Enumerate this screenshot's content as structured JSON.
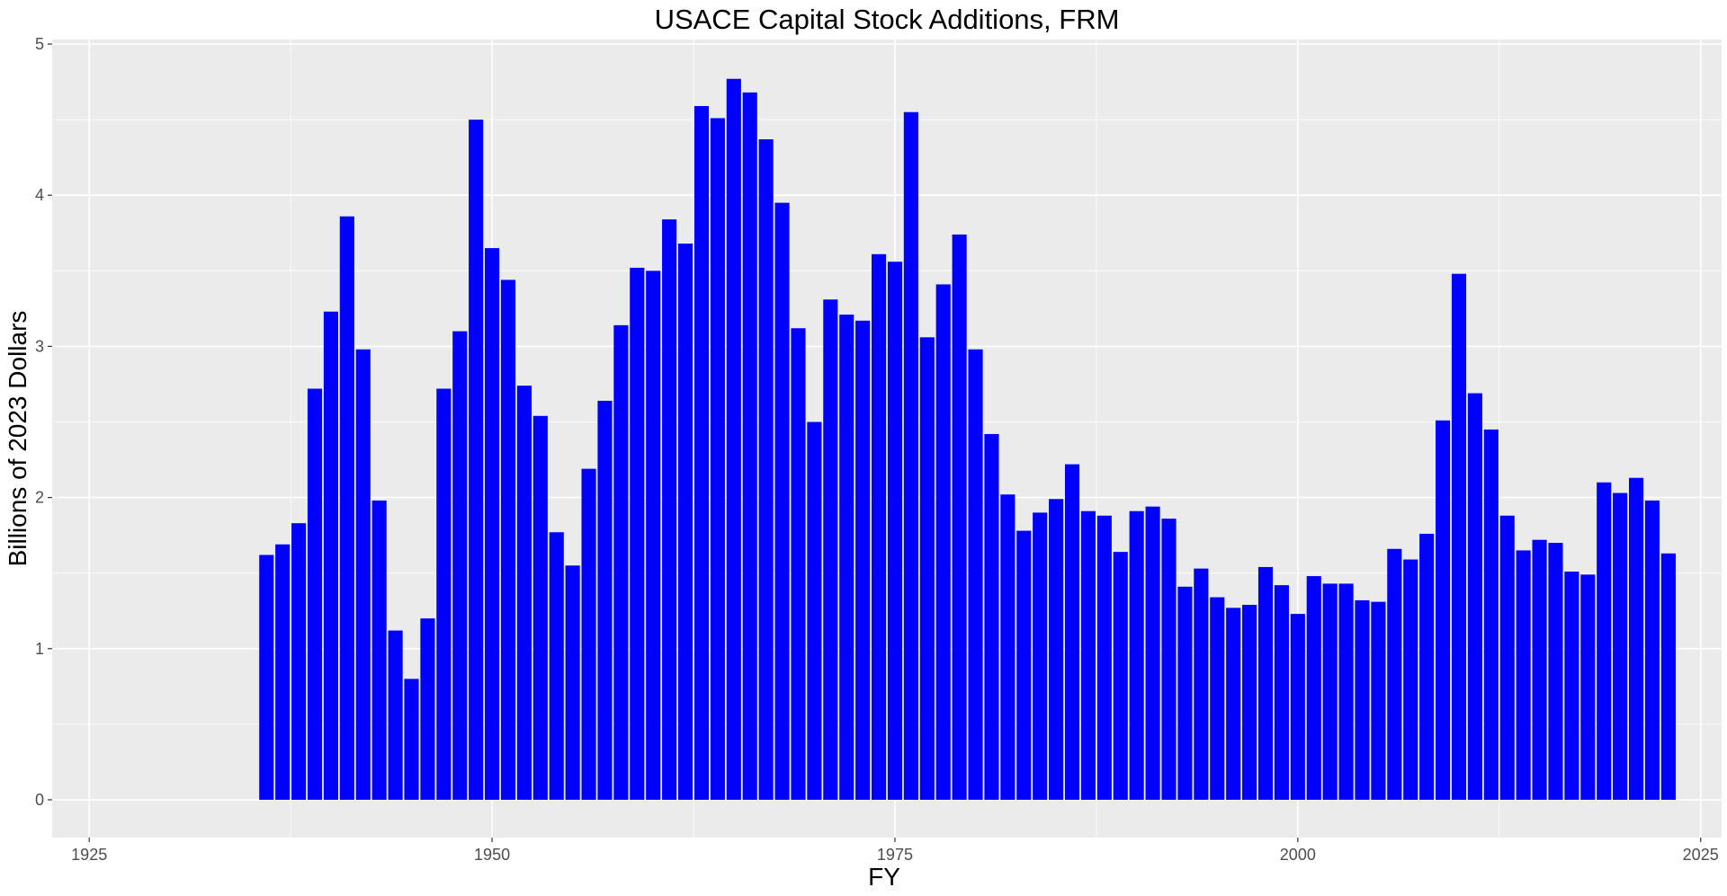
{
  "chart_data": {
    "type": "bar",
    "title": "USACE Capital Stock Additions, FRM",
    "xlabel": "FY",
    "ylabel": "Billions of 2023 Dollars",
    "xlim": [
      1922.7,
      2026.3
    ],
    "ylim": [
      -0.25,
      5.03
    ],
    "x_ticks": [
      1925,
      1950,
      1975,
      2000,
      2025
    ],
    "x_tick_labels": [
      "1925",
      "1950",
      "1975",
      "2000",
      "2025"
    ],
    "y_ticks": [
      0,
      1,
      2,
      3,
      4,
      5
    ],
    "y_tick_labels": [
      "0",
      "1",
      "2",
      "3",
      "4",
      "5"
    ],
    "grid": true,
    "bar_color": "#0000FF",
    "panel_color": "#EBEBEB",
    "grid_color": "#FFFFFF",
    "series": [
      {
        "x": [
          1936,
          1937,
          1938,
          1939,
          1940,
          1941,
          1942,
          1943,
          1944,
          1945,
          1946,
          1947,
          1948,
          1949,
          1950,
          1951,
          1952,
          1953,
          1954,
          1955,
          1956,
          1957,
          1958,
          1959,
          1960,
          1961,
          1962,
          1963,
          1964,
          1965,
          1966,
          1967,
          1968,
          1969,
          1970,
          1971,
          1972,
          1973,
          1974,
          1975,
          1976,
          1977,
          1978,
          1979,
          1980,
          1981,
          1982,
          1983,
          1984,
          1985,
          1986,
          1987,
          1988,
          1989,
          1990,
          1991,
          1992,
          1993,
          1994,
          1995,
          1996,
          1997,
          1998,
          1999,
          2000,
          2001,
          2002,
          2003,
          2004,
          2005,
          2006,
          2007,
          2008,
          2009,
          2010,
          2011,
          2012,
          2013,
          2014,
          2015,
          2016,
          2017,
          2018,
          2019,
          2020,
          2021,
          2022,
          2023
        ],
        "values": [
          1.62,
          1.69,
          1.83,
          2.72,
          3.23,
          3.86,
          2.98,
          1.98,
          1.12,
          0.8,
          1.2,
          2.72,
          3.1,
          4.5,
          3.65,
          3.44,
          2.74,
          2.54,
          1.77,
          1.55,
          2.19,
          2.64,
          3.14,
          3.52,
          3.5,
          3.84,
          3.68,
          4.59,
          4.51,
          4.77,
          4.68,
          4.37,
          3.95,
          3.12,
          2.5,
          3.31,
          3.21,
          3.17,
          3.61,
          3.56,
          4.55,
          3.06,
          3.41,
          3.74,
          2.98,
          2.42,
          2.02,
          1.78,
          1.9,
          1.99,
          2.22,
          1.91,
          1.88,
          1.64,
          1.91,
          1.94,
          1.86,
          1.41,
          1.53,
          1.34,
          1.27,
          1.29,
          1.54,
          1.42,
          1.23,
          1.48,
          1.43,
          1.43,
          1.32,
          1.31,
          1.66,
          1.59,
          1.76,
          2.51,
          3.48,
          2.69,
          2.45,
          1.88,
          1.65,
          1.72,
          1.7,
          1.51,
          1.49,
          2.1,
          2.03,
          2.13,
          1.98,
          1.63
        ]
      }
    ]
  }
}
